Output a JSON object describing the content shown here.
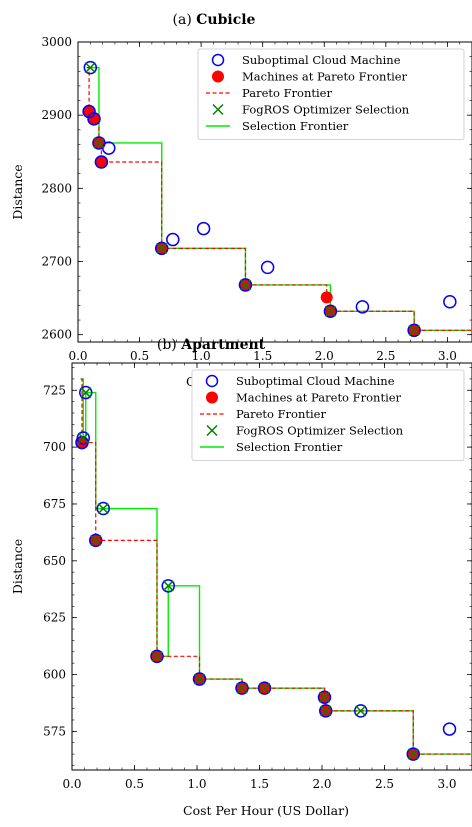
{
  "colors": {
    "suboptimal": "#0000ff",
    "pareto_point": "#ff0000",
    "pareto_line": "#ff0000",
    "selection_marker": "#008000",
    "selection_line": "#00ee00"
  },
  "chart_data": [
    {
      "type": "scatter",
      "title_prefix": "(a)",
      "title": "Cubicle",
      "xlabel": "Cost Per Hour (US Dollar)",
      "ylabel": "Distance",
      "xlim": [
        0.0,
        3.2
      ],
      "ylim": [
        2590,
        3000
      ],
      "xticks": [
        0.0,
        0.5,
        1.0,
        1.5,
        2.0,
        2.5,
        3.0
      ],
      "xtick_labels": [
        "0.0",
        "0.5",
        "1.0",
        "1.5",
        "2.0",
        "2.5",
        "3.0"
      ],
      "yticks": [
        2600,
        2700,
        2800,
        2900,
        3000
      ],
      "ytick_labels": [
        "2600",
        "2700",
        "2800",
        "2900",
        "3000"
      ],
      "legend_position": "top-right",
      "legend": [
        "Suboptimal Cloud Machine",
        "Machines at Pareto Frontier",
        "Pareto Frontier",
        "FogROS Optimizer Selection",
        "Selection Frontier"
      ],
      "suboptimal": [
        [
          0.1,
          2965
        ],
        [
          0.09,
          2905
        ],
        [
          0.13,
          2895
        ],
        [
          0.17,
          2862
        ],
        [
          0.25,
          2855
        ],
        [
          0.19,
          2836
        ],
        [
          0.68,
          2718
        ],
        [
          0.77,
          2730
        ],
        [
          1.02,
          2745
        ],
        [
          1.36,
          2668
        ],
        [
          1.54,
          2692
        ],
        [
          2.05,
          2632
        ],
        [
          2.31,
          2638
        ],
        [
          2.73,
          2606
        ],
        [
          3.02,
          2645
        ]
      ],
      "pareto": [
        [
          0.09,
          2905
        ],
        [
          0.13,
          2895
        ],
        [
          0.17,
          2862
        ],
        [
          0.19,
          2836
        ],
        [
          0.68,
          2718
        ],
        [
          1.36,
          2668
        ],
        [
          2.02,
          2651
        ],
        [
          2.05,
          2632
        ],
        [
          2.73,
          2606
        ]
      ],
      "selection": [
        [
          0.1,
          2965
        ],
        [
          0.17,
          2862
        ],
        [
          0.68,
          2718
        ],
        [
          1.36,
          2668
        ],
        [
          2.05,
          2632
        ],
        [
          2.73,
          2606
        ]
      ],
      "pareto_frontier": [
        [
          0.07,
          2965
        ],
        [
          0.09,
          2965
        ],
        [
          0.09,
          2905
        ],
        [
          0.13,
          2905
        ],
        [
          0.13,
          2895
        ],
        [
          0.17,
          2895
        ],
        [
          0.17,
          2862
        ],
        [
          0.19,
          2862
        ],
        [
          0.19,
          2836
        ],
        [
          0.68,
          2836
        ],
        [
          0.68,
          2718
        ],
        [
          1.36,
          2718
        ],
        [
          1.36,
          2668
        ],
        [
          2.02,
          2668
        ],
        [
          2.02,
          2651
        ],
        [
          2.05,
          2651
        ],
        [
          2.05,
          2632
        ],
        [
          2.73,
          2632
        ],
        [
          2.73,
          2606
        ],
        [
          3.2,
          2606
        ]
      ],
      "selection_frontier": [
        [
          0.07,
          2965
        ],
        [
          0.17,
          2965
        ],
        [
          0.17,
          2862
        ],
        [
          0.68,
          2862
        ],
        [
          0.68,
          2718
        ],
        [
          1.36,
          2718
        ],
        [
          1.36,
          2668
        ],
        [
          2.05,
          2668
        ],
        [
          2.05,
          2632
        ],
        [
          2.73,
          2632
        ],
        [
          2.73,
          2606
        ],
        [
          3.2,
          2606
        ]
      ]
    },
    {
      "type": "scatter",
      "title_prefix": "(b)",
      "title": "Apartment",
      "xlabel": "Cost Per Hour (US Dollar)",
      "ylabel": "Distance",
      "xlim": [
        0.0,
        3.2
      ],
      "ylim": [
        558,
        737
      ],
      "xticks": [
        0.0,
        0.5,
        1.0,
        1.5,
        2.0,
        2.5,
        3.0
      ],
      "xtick_labels": [
        "0.0",
        "0.5",
        "1.0",
        "1.5",
        "2.0",
        "2.5",
        "3.0"
      ],
      "yticks": [
        575,
        600,
        625,
        650,
        675,
        700,
        725
      ],
      "ytick_labels": [
        "575",
        "600",
        "625",
        "650",
        "675",
        "700",
        "725"
      ],
      "legend_position": "top-right",
      "legend": [
        "Suboptimal Cloud Machine",
        "Machines at Pareto Frontier",
        "Pareto Frontier",
        "FogROS Optimizer Selection",
        "Selection Frontier"
      ],
      "suboptimal": [
        [
          0.11,
          724
        ],
        [
          0.09,
          704
        ],
        [
          0.08,
          702
        ],
        [
          0.25,
          673
        ],
        [
          0.19,
          659
        ],
        [
          0.77,
          639
        ],
        [
          0.68,
          608
        ],
        [
          1.02,
          598
        ],
        [
          1.36,
          594
        ],
        [
          1.54,
          594
        ],
        [
          2.02,
          590
        ],
        [
          2.03,
          584
        ],
        [
          2.31,
          584
        ],
        [
          2.73,
          565
        ],
        [
          3.02,
          576
        ]
      ],
      "pareto": [
        [
          0.08,
          702
        ],
        [
          0.19,
          659
        ],
        [
          0.68,
          608
        ],
        [
          1.02,
          598
        ],
        [
          1.36,
          594
        ],
        [
          1.54,
          594
        ],
        [
          2.02,
          590
        ],
        [
          2.03,
          584
        ],
        [
          2.73,
          565
        ]
      ],
      "selection": [
        [
          0.11,
          724
        ],
        [
          0.09,
          704
        ],
        [
          0.25,
          673
        ],
        [
          0.19,
          659
        ],
        [
          0.77,
          639
        ],
        [
          0.68,
          608
        ],
        [
          1.02,
          598
        ],
        [
          1.36,
          594
        ],
        [
          1.54,
          594
        ],
        [
          2.02,
          590
        ],
        [
          2.03,
          584
        ],
        [
          2.31,
          584
        ],
        [
          2.73,
          565
        ]
      ],
      "pareto_frontier": [
        [
          0.07,
          730
        ],
        [
          0.08,
          730
        ],
        [
          0.08,
          702
        ],
        [
          0.19,
          702
        ],
        [
          0.19,
          659
        ],
        [
          0.68,
          659
        ],
        [
          0.68,
          608
        ],
        [
          1.02,
          608
        ],
        [
          1.02,
          598
        ],
        [
          1.36,
          598
        ],
        [
          1.36,
          594
        ],
        [
          2.02,
          594
        ],
        [
          2.02,
          590
        ],
        [
          2.03,
          590
        ],
        [
          2.03,
          584
        ],
        [
          2.73,
          584
        ],
        [
          2.73,
          565
        ],
        [
          3.2,
          565
        ]
      ],
      "selection_frontier": [
        [
          0.07,
          730
        ],
        [
          0.09,
          730
        ],
        [
          0.09,
          704
        ],
        [
          0.11,
          704
        ],
        [
          0.11,
          724
        ],
        [
          0.19,
          724
        ],
        [
          0.19,
          673
        ],
        [
          0.68,
          673
        ],
        [
          0.68,
          608
        ],
        [
          0.77,
          608
        ],
        [
          0.77,
          639
        ],
        [
          1.02,
          639
        ],
        [
          1.02,
          598
        ],
        [
          1.36,
          598
        ],
        [
          1.36,
          594
        ],
        [
          2.02,
          594
        ],
        [
          2.02,
          590
        ],
        [
          2.03,
          590
        ],
        [
          2.03,
          584
        ],
        [
          2.31,
          584
        ],
        [
          2.73,
          584
        ],
        [
          2.73,
          565
        ],
        [
          3.2,
          565
        ]
      ]
    }
  ]
}
